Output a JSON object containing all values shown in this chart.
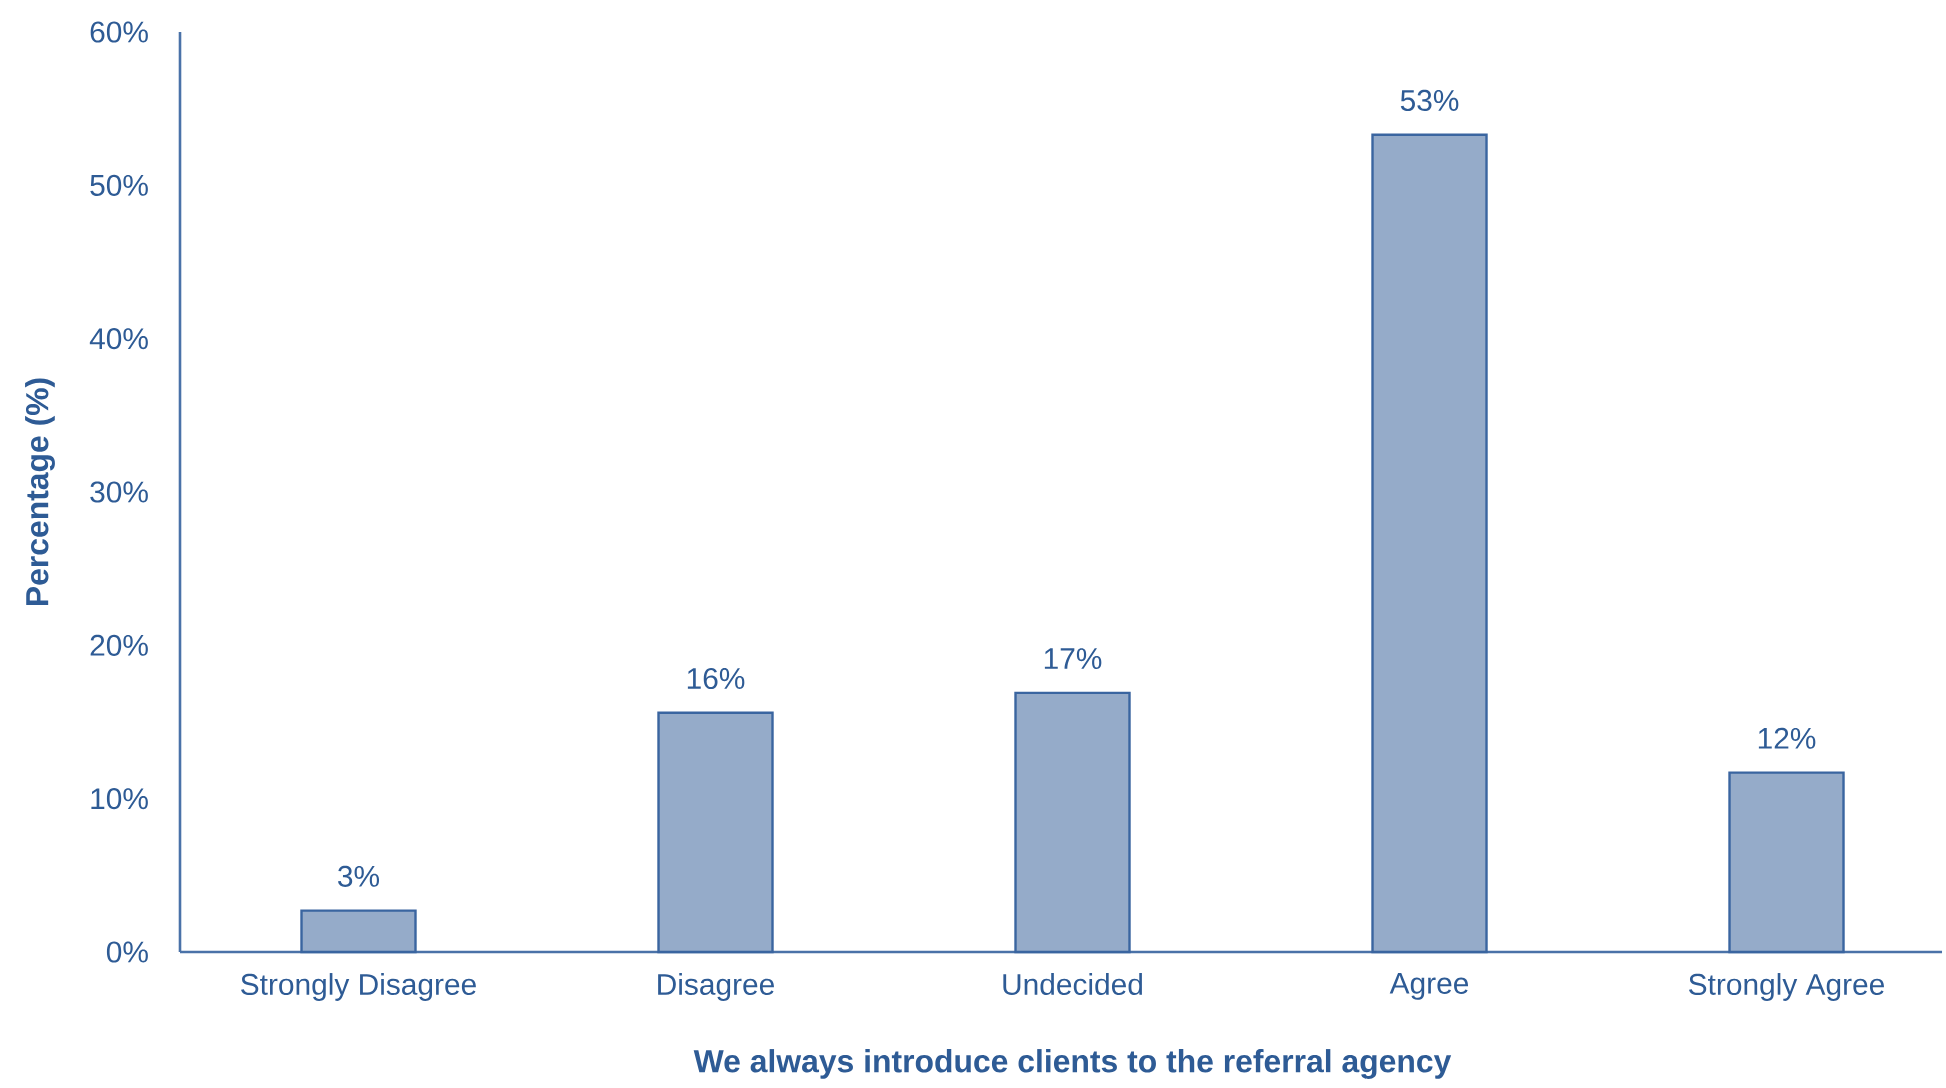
{
  "chart_data": {
    "type": "bar",
    "xlabel": "We always introduce clients to the referral agency",
    "ylabel": "Percentage (%)",
    "categories": [
      "Strongly Disagree",
      "Disagree",
      "Undecided",
      "Agree",
      "Strongly Agree"
    ],
    "values": [
      2.7,
      15.6,
      16.9,
      53.3,
      11.7
    ],
    "value_labels": [
      "3%",
      "16%",
      "17%",
      "53%",
      "12%"
    ],
    "color": "#95abc9",
    "ylim": [
      0,
      60
    ],
    "yticks": [
      {
        "value": 0,
        "label": "0%"
      },
      {
        "value": 10,
        "label": "10%"
      },
      {
        "value": 20,
        "label": "20%"
      },
      {
        "value": 30,
        "label": "30%"
      },
      {
        "value": 40,
        "label": "40%"
      },
      {
        "value": 50,
        "label": "50%"
      },
      {
        "value": 60,
        "label": "60%"
      }
    ]
  }
}
